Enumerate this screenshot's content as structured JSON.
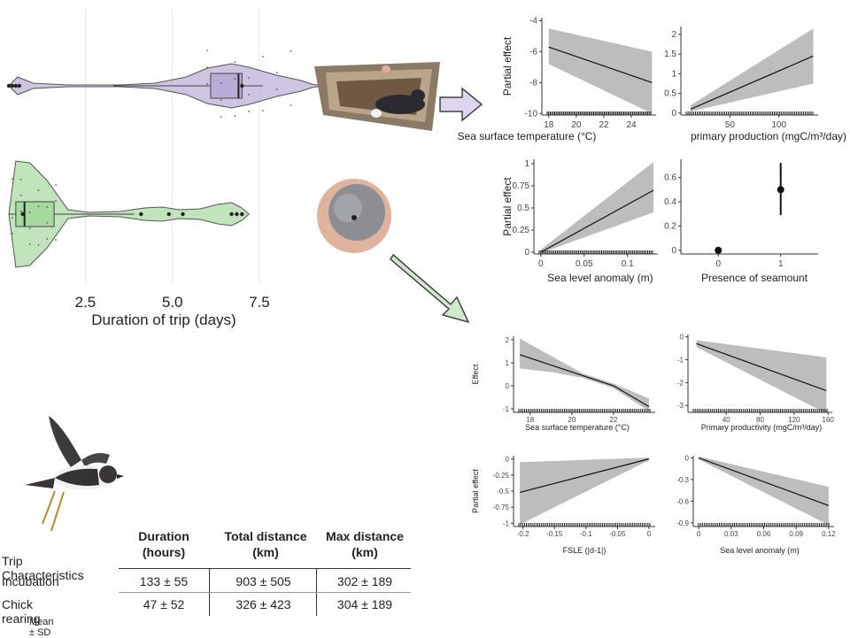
{
  "chart_data": [
    {
      "type": "violin-box",
      "xlabel": "Duration of trip (days)",
      "x_ticks": [
        "2.5",
        "5.0",
        "7.5"
      ],
      "xlim": [
        0.3,
        9.6
      ],
      "series": [
        {
          "name": "",
          "color": "#b9acd6",
          "box": {
            "q1": 6.1,
            "median": 6.9,
            "q3": 7.0,
            "whisker_low": 3.3,
            "whisker_high": 7.6
          },
          "points": [
            0.3,
            0.4,
            0.5,
            0.6,
            7.0
          ]
        },
        {
          "name": "",
          "color": "#a6d9a0",
          "box": {
            "q1": 0.5,
            "median": 0.75,
            "q3": 1.6,
            "whisker_low": 0.3,
            "whisker_high": 3.9
          },
          "points": [
            0.7,
            4.1,
            4.9,
            5.3,
            6.7,
            6.85,
            7.0
          ]
        }
      ]
    },
    {
      "type": "line",
      "id": "panel-a-sst",
      "xlabel": "Sea surface temperature (°C)",
      "ylabel": "Partial effect",
      "xlim": [
        17.5,
        25.8
      ],
      "ylim": [
        -10.1,
        -3.8
      ],
      "x_ticks": [
        18,
        20,
        22,
        24
      ],
      "y_ticks": [
        -10,
        -8,
        -6,
        -4
      ],
      "line": [
        [
          18,
          -5.7
        ],
        [
          25.5,
          -8.0
        ]
      ],
      "band": [
        [
          18,
          -4.5,
          -6.8
        ],
        [
          25.5,
          -6.0,
          -10.0
        ]
      ]
    },
    {
      "type": "line",
      "id": "panel-a-pp",
      "xlabel": "primary production (mgC/m³/day)",
      "ylabel": "",
      "xlim": [
        0,
        140
      ],
      "ylim": [
        -0.05,
        2.2
      ],
      "x_ticks": [
        50,
        100
      ],
      "y_ticks": [
        0.0,
        0.5,
        1.0,
        1.5,
        2.0
      ],
      "line": [
        [
          10,
          0.1
        ],
        [
          135,
          1.45
        ]
      ],
      "band": [
        [
          10,
          0.2,
          0.04
        ],
        [
          135,
          2.15,
          0.75
        ]
      ]
    },
    {
      "type": "line",
      "id": "panel-a-sla",
      "xlabel": "Sea level anomaly (m)",
      "ylabel": "Partial effect",
      "xlim": [
        -0.008,
        0.135
      ],
      "ylim": [
        -0.02,
        1.05
      ],
      "x_ticks": [
        0.0,
        0.05,
        0.1
      ],
      "y_ticks": [
        0.0,
        0.25,
        0.5,
        0.75,
        1.0
      ],
      "line": [
        [
          0,
          0.0
        ],
        [
          0.13,
          0.7
        ]
      ],
      "band": [
        [
          0,
          0.03,
          -0.01
        ],
        [
          0.13,
          1.02,
          0.45
        ]
      ]
    },
    {
      "type": "scatter",
      "id": "panel-a-seamount",
      "xlabel": "Presence of seamount",
      "ylabel": "",
      "xlim": [
        -0.6,
        1.6
      ],
      "ylim": [
        -0.03,
        0.75
      ],
      "x_ticks": [
        0,
        1
      ],
      "y_ticks": [
        0.0,
        0.2,
        0.4,
        0.6
      ],
      "points": [
        {
          "x": 0,
          "y": 0.0,
          "lo": 0.0,
          "hi": 0.0
        },
        {
          "x": 1,
          "y": 0.5,
          "lo": 0.29,
          "hi": 0.72
        }
      ]
    },
    {
      "type": "line",
      "id": "panel-b-sst",
      "xlabel": "Sea surface temperature (°C)",
      "ylabel": "Effect",
      "xlim": [
        17.2,
        24.0
      ],
      "ylim": [
        -1.15,
        2.15
      ],
      "x_ticks": [
        18,
        20,
        22
      ],
      "y_ticks": [
        -1,
        0,
        1,
        2
      ],
      "line": [
        [
          17.5,
          1.35
        ],
        [
          19.0,
          0.9
        ],
        [
          20.5,
          0.45
        ],
        [
          22.0,
          0.0
        ],
        [
          23.7,
          -0.9
        ]
      ],
      "band": [
        [
          17.5,
          2.05,
          0.75
        ],
        [
          19.0,
          1.3,
          0.6
        ],
        [
          20.5,
          0.55,
          0.35
        ],
        [
          22.0,
          0.1,
          -0.1
        ],
        [
          23.7,
          -0.55,
          -1.1
        ]
      ]
    },
    {
      "type": "line",
      "id": "panel-b-pp",
      "xlabel": "Primary productivity (mgC/m³/day)",
      "ylabel": "",
      "xlim": [
        -5,
        165
      ],
      "ylim": [
        -3.3,
        0.1
      ],
      "x_ticks": [
        40,
        80,
        120,
        160
      ],
      "y_ticks": [
        0,
        -1,
        -2,
        -3
      ],
      "line": [
        [
          5,
          -0.3
        ],
        [
          158,
          -2.35
        ]
      ],
      "band": [
        [
          5,
          -0.15,
          -0.45
        ],
        [
          158,
          -0.9,
          -3.35
        ]
      ]
    },
    {
      "type": "line",
      "id": "panel-b-fsle",
      "xlabel": "FSLE (|d-1|)",
      "ylabel": "Partial effect",
      "xlim": [
        -0.215,
        0.01
      ],
      "ylim": [
        -1.05,
        0.05
      ],
      "x_ticks": [
        -0.2,
        -0.15,
        -0.1,
        -0.05,
        0.0
      ],
      "y_ticks": [
        0.0,
        -0.25,
        -0.5,
        -0.75,
        -1.0
      ],
      "line": [
        [
          -0.205,
          -0.52
        ],
        [
          0.0,
          0.0
        ]
      ],
      "band": [
        [
          -0.205,
          -0.05,
          -1.02
        ],
        [
          0.0,
          0.02,
          -0.02
        ]
      ]
    },
    {
      "type": "line",
      "id": "panel-b-sla",
      "xlabel": "Sea level anomaly (m)",
      "ylabel": "",
      "xlim": [
        -0.005,
        0.125
      ],
      "ylim": [
        -0.95,
        0.03
      ],
      "x_ticks": [
        0.0,
        0.03,
        0.06,
        0.09,
        0.12
      ],
      "y_ticks": [
        0.0,
        -0.3,
        -0.6,
        -0.9
      ],
      "line": [
        [
          0.0,
          0.0
        ],
        [
          0.12,
          -0.66
        ]
      ],
      "band": [
        [
          0.0,
          0.02,
          -0.02
        ],
        [
          0.12,
          -0.4,
          -0.93
        ]
      ]
    }
  ],
  "table": {
    "title": "Trip Characteristics",
    "note": "Mean ± SD",
    "headers": [
      "Duration\n(hours)",
      "Total distance\n(km)",
      "Max distance\n(km)"
    ],
    "rows": [
      {
        "label": "Incubation",
        "values": [
          "133 ± 55",
          "903 ± 505",
          "302 ± 189"
        ]
      },
      {
        "label": "Chick rearing",
        "values": [
          "47 ± 52",
          "326 ± 423",
          "304 ± 189"
        ]
      }
    ]
  },
  "colors": {
    "incubation": "#b9acd6",
    "chick": "#a6d9a0",
    "band": "#bdbdbd",
    "arrow_top": "#ddd6ee",
    "arrow_bottom": "#cfeacb"
  },
  "images": {
    "nest": "storm-petrel-in-nest-photo",
    "chick": "chick-in-hand-photo",
    "bird": "storm-petrel-illustration"
  }
}
